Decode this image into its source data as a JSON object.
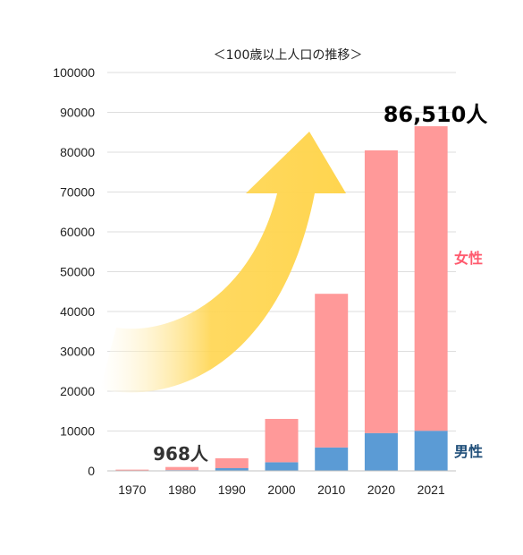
{
  "chart_data": {
    "type": "bar",
    "stacked": true,
    "title": "＜100歳以上人口の推移＞",
    "categories": [
      "1970",
      "1980",
      "1990",
      "2000",
      "2010",
      "2020",
      "2021"
    ],
    "series": [
      {
        "name": "男性",
        "values": [
          60,
          190,
          680,
          2160,
          5870,
          9470,
          10060
        ],
        "color": "#5b9bd5"
      },
      {
        "name": "女性",
        "values": [
          250,
          780,
          2480,
          10880,
          38580,
          70980,
          76450
        ],
        "color": "#ff9999"
      }
    ],
    "ylim": [
      0,
      100000
    ],
    "yticks": [
      "0",
      "10000",
      "20000",
      "30000",
      "40000",
      "50000",
      "60000",
      "70000",
      "80000",
      "90000",
      "100000"
    ],
    "grid": true,
    "annotations": {
      "callout_1980": "968人",
      "callout_2021": "86,510人"
    },
    "legend_colors": {
      "female": "#ff5a6e",
      "male": "#1f4e79"
    },
    "arrow_color": "#ffd54f"
  }
}
